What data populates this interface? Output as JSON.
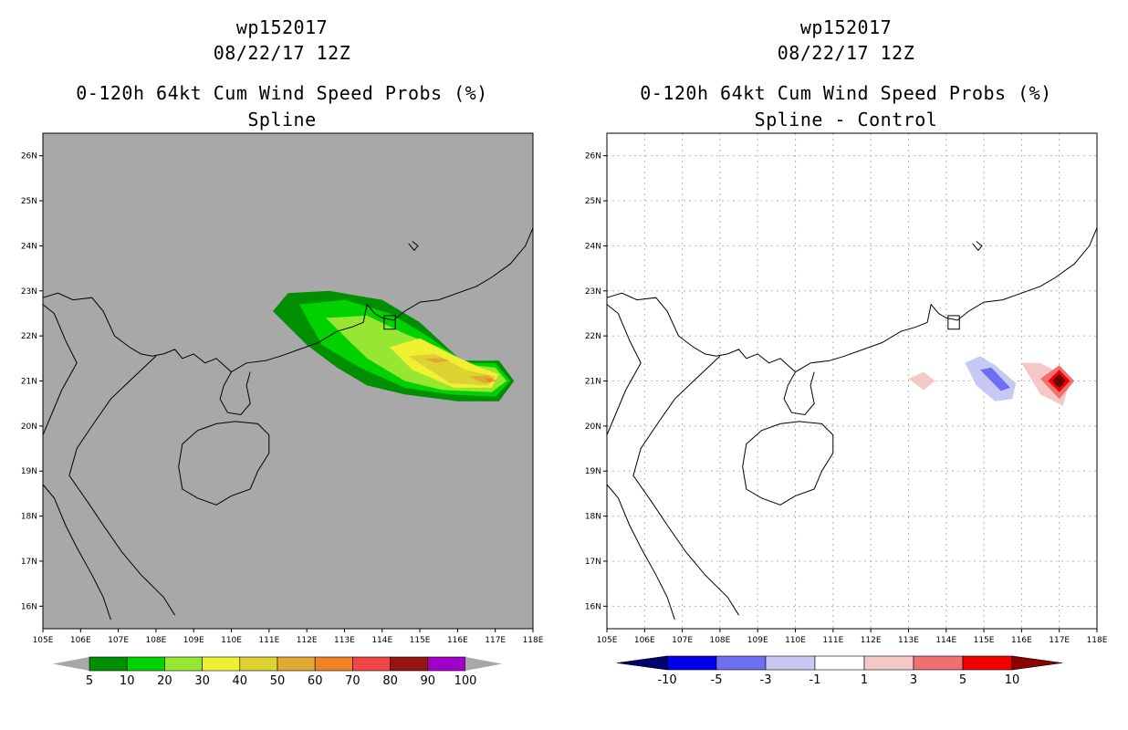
{
  "chart_data": [
    {
      "type": "heatmap",
      "storm_id": "wp152017",
      "datetime": "08/22/17 12Z",
      "title": "0-120h 64kt Cum Wind Speed Probs (%)",
      "subtitle": "Spline",
      "xlim": [
        105,
        118
      ],
      "ylim": [
        15.5,
        26.5
      ],
      "x_ticks": [
        "105E",
        "106E",
        "107E",
        "108E",
        "109E",
        "110E",
        "111E",
        "112E",
        "113E",
        "114E",
        "115E",
        "116E",
        "117E",
        "118E"
      ],
      "y_ticks": [
        "16N",
        "17N",
        "18N",
        "19N",
        "20N",
        "21N",
        "22N",
        "23N",
        "24N",
        "25N",
        "26N"
      ],
      "background": "#a8a8a8",
      "colorbar": {
        "levels": [
          "5",
          "10",
          "20",
          "30",
          "40",
          "50",
          "60",
          "70",
          "80",
          "90",
          "100"
        ],
        "colors": [
          "#008f00",
          "#00d200",
          "#96e632",
          "#f0f032",
          "#dcd232",
          "#e1aa32",
          "#f08228",
          "#f04646",
          "#961414",
          "#a000c8"
        ],
        "extend_color": "#a8a8a8"
      },
      "contours": [
        {
          "level": "5-10",
          "color": "#008f00",
          "polygon": [
            [
              111.1,
              22.55
            ],
            [
              111.5,
              22.95
            ],
            [
              112.6,
              23.0
            ],
            [
              114.0,
              22.8
            ],
            [
              115.0,
              22.3
            ],
            [
              116.1,
              21.45
            ],
            [
              117.1,
              21.45
            ],
            [
              117.5,
              21.0
            ],
            [
              117.1,
              20.55
            ],
            [
              116.0,
              20.55
            ],
            [
              114.6,
              20.7
            ],
            [
              113.6,
              20.9
            ],
            [
              112.8,
              21.3
            ],
            [
              112.0,
              21.8
            ],
            [
              111.1,
              22.55
            ]
          ]
        },
        {
          "level": "10-20",
          "color": "#00d200",
          "polygon": [
            [
              111.8,
              22.7
            ],
            [
              113.0,
              22.8
            ],
            [
              114.2,
              22.5
            ],
            [
              115.2,
              22.0
            ],
            [
              116.2,
              21.4
            ],
            [
              117.0,
              21.4
            ],
            [
              117.4,
              21.0
            ],
            [
              117.0,
              20.65
            ],
            [
              115.8,
              20.7
            ],
            [
              114.6,
              20.85
            ],
            [
              113.4,
              21.3
            ],
            [
              112.4,
              21.8
            ],
            [
              111.8,
              22.7
            ]
          ]
        },
        {
          "level": "20-30",
          "color": "#96e632",
          "polygon": [
            [
              112.5,
              22.4
            ],
            [
              113.6,
              22.45
            ],
            [
              114.6,
              22.05
            ],
            [
              115.5,
              21.75
            ],
            [
              116.4,
              21.35
            ],
            [
              117.0,
              21.3
            ],
            [
              117.3,
              21.0
            ],
            [
              116.9,
              20.75
            ],
            [
              115.6,
              20.8
            ],
            [
              114.6,
              21.0
            ],
            [
              113.6,
              21.5
            ],
            [
              112.5,
              22.4
            ]
          ]
        },
        {
          "level": "30-40",
          "color": "#f0f032",
          "polygon": [
            [
              114.2,
              21.75
            ],
            [
              115.0,
              21.95
            ],
            [
              115.8,
              21.6
            ],
            [
              116.6,
              21.3
            ],
            [
              117.1,
              21.15
            ],
            [
              116.9,
              20.85
            ],
            [
              115.9,
              20.85
            ],
            [
              114.8,
              21.25
            ],
            [
              114.2,
              21.75
            ]
          ]
        },
        {
          "level": "40-50",
          "color": "#dcd232",
          "polygon": [
            [
              114.7,
              21.55
            ],
            [
              115.4,
              21.6
            ],
            [
              116.2,
              21.25
            ],
            [
              117.0,
              21.1
            ],
            [
              116.8,
              20.9
            ],
            [
              115.8,
              20.95
            ],
            [
              114.7,
              21.55
            ]
          ]
        },
        {
          "level": "50-60",
          "color": "#e1aa32",
          "polygon": [
            [
              115.1,
              21.5
            ],
            [
              115.6,
              21.5
            ],
            [
              115.8,
              21.45
            ],
            [
              115.4,
              21.4
            ],
            [
              115.1,
              21.5
            ]
          ]
        },
        {
          "level": "50-60",
          "color": "#e1aa32",
          "polygon": [
            [
              116.3,
              21.1
            ],
            [
              116.8,
              21.12
            ],
            [
              117.05,
              21.0
            ],
            [
              116.7,
              20.95
            ],
            [
              116.3,
              21.1
            ]
          ]
        },
        {
          "level": "60-70",
          "color": "#f08228",
          "polygon": [
            [
              116.7,
              21.06
            ],
            [
              116.95,
              21.04
            ],
            [
              116.85,
              20.96
            ],
            [
              116.7,
              21.06
            ]
          ]
        }
      ]
    },
    {
      "type": "heatmap",
      "storm_id": "wp152017",
      "datetime": "08/22/17 12Z",
      "title": "0-120h 64kt Cum Wind Speed Probs (%)",
      "subtitle": "Spline - Control",
      "xlim": [
        105,
        118
      ],
      "ylim": [
        15.5,
        26.5
      ],
      "x_ticks": [
        "105E",
        "106E",
        "107E",
        "108E",
        "109E",
        "110E",
        "111E",
        "112E",
        "113E",
        "114E",
        "115E",
        "116E",
        "117E",
        "118E"
      ],
      "y_ticks": [
        "16N",
        "17N",
        "18N",
        "19N",
        "20N",
        "21N",
        "22N",
        "23N",
        "24N",
        "25N",
        "26N"
      ],
      "background": "#ffffff",
      "grid": true,
      "colorbar": {
        "levels": [
          "-10",
          "-5",
          "-3",
          "-1",
          "1",
          "3",
          "5",
          "10"
        ],
        "colors": [
          "#0000e6",
          "#6e6ef0",
          "#c8c8f5",
          "#ffffff",
          "#f5c8c8",
          "#f07070",
          "#f00000"
        ],
        "under_color": "#00006e",
        "over_color": "#8c0000"
      },
      "contours": [
        {
          "level": "-3 to -1",
          "color": "#c8c8f5",
          "polygon": [
            [
              114.5,
              21.4
            ],
            [
              114.9,
              21.55
            ],
            [
              115.3,
              21.35
            ],
            [
              115.85,
              20.95
            ],
            [
              115.75,
              20.6
            ],
            [
              115.3,
              20.55
            ],
            [
              114.8,
              20.9
            ],
            [
              114.5,
              21.4
            ]
          ]
        },
        {
          "level": "-5 to -3",
          "color": "#6e6ef0",
          "polygon": [
            [
              114.9,
              21.25
            ],
            [
              115.2,
              21.3
            ],
            [
              115.7,
              20.85
            ],
            [
              115.45,
              20.78
            ],
            [
              114.9,
              21.25
            ]
          ]
        },
        {
          "level": "1 to 3",
          "color": "#f5c8c8",
          "polygon": [
            [
              113.0,
              21.05
            ],
            [
              113.4,
              21.2
            ],
            [
              113.7,
              21.0
            ],
            [
              113.4,
              20.8
            ],
            [
              113.0,
              21.05
            ]
          ]
        },
        {
          "level": "1 to 3",
          "color": "#f5c8c8",
          "polygon": [
            [
              116.0,
              21.4
            ],
            [
              116.5,
              21.4
            ],
            [
              117.3,
              21.05
            ],
            [
              117.1,
              20.45
            ],
            [
              116.5,
              20.7
            ],
            [
              116.0,
              21.4
            ]
          ]
        },
        {
          "level": "3 to 5",
          "color": "#f07070",
          "polygon": [
            [
              116.5,
              21.05
            ],
            [
              117.0,
              21.35
            ],
            [
              117.4,
              21.0
            ],
            [
              117.0,
              20.6
            ],
            [
              116.5,
              21.05
            ]
          ]
        },
        {
          "level": "5 to 10",
          "color": "#f00000",
          "polygon": [
            [
              116.7,
              21.0
            ],
            [
              117.0,
              21.25
            ],
            [
              117.28,
              21.0
            ],
            [
              117.0,
              20.75
            ],
            [
              116.7,
              21.0
            ]
          ]
        },
        {
          "level": ">10",
          "color": "#8c0000",
          "polygon": [
            [
              116.85,
              21.0
            ],
            [
              117.0,
              21.14
            ],
            [
              117.14,
              21.0
            ],
            [
              117.0,
              20.86
            ],
            [
              116.85,
              21.0
            ]
          ]
        }
      ]
    }
  ],
  "map": {
    "coastline": [
      [
        105.0,
        22.85
      ],
      [
        105.4,
        22.95
      ],
      [
        105.8,
        22.8
      ],
      [
        106.3,
        22.85
      ],
      [
        106.6,
        22.55
      ],
      [
        106.9,
        22.0
      ],
      [
        107.3,
        21.75
      ],
      [
        107.6,
        21.6
      ],
      [
        107.9,
        21.55
      ],
      [
        108.2,
        21.6
      ],
      [
        108.5,
        21.7
      ],
      [
        108.7,
        21.5
      ],
      [
        109.0,
        21.6
      ],
      [
        109.3,
        21.4
      ],
      [
        109.6,
        21.5
      ],
      [
        109.8,
        21.35
      ],
      [
        110.0,
        21.2
      ],
      [
        110.4,
        21.4
      ],
      [
        110.9,
        21.45
      ],
      [
        111.3,
        21.55
      ],
      [
        111.8,
        21.7
      ],
      [
        112.3,
        21.85
      ],
      [
        112.8,
        22.1
      ],
      [
        113.2,
        22.2
      ],
      [
        113.5,
        22.3
      ],
      [
        113.6,
        22.7
      ],
      [
        113.8,
        22.5
      ],
      [
        114.0,
        22.4
      ],
      [
        114.3,
        22.35
      ],
      [
        114.6,
        22.55
      ],
      [
        115.0,
        22.75
      ],
      [
        115.5,
        22.8
      ],
      [
        116.0,
        22.95
      ],
      [
        116.5,
        23.1
      ],
      [
        116.9,
        23.3
      ],
      [
        117.4,
        23.6
      ],
      [
        117.8,
        24.0
      ],
      [
        118.0,
        24.4
      ]
    ],
    "leizhou": [
      [
        110.0,
        21.2
      ],
      [
        109.8,
        20.9
      ],
      [
        109.7,
        20.6
      ],
      [
        109.9,
        20.3
      ],
      [
        110.25,
        20.25
      ],
      [
        110.5,
        20.5
      ],
      [
        110.4,
        20.9
      ],
      [
        110.5,
        21.2
      ]
    ],
    "hainan": [
      [
        108.6,
        19.1
      ],
      [
        108.7,
        19.6
      ],
      [
        109.1,
        19.9
      ],
      [
        109.6,
        20.05
      ],
      [
        110.1,
        20.1
      ],
      [
        110.7,
        20.05
      ],
      [
        111.0,
        19.8
      ],
      [
        111.0,
        19.4
      ],
      [
        110.7,
        19.0
      ],
      [
        110.5,
        18.6
      ],
      [
        110.0,
        18.45
      ],
      [
        109.6,
        18.25
      ],
      [
        109.1,
        18.4
      ],
      [
        108.7,
        18.6
      ],
      [
        108.6,
        19.1
      ]
    ],
    "vietnam": [
      [
        108.0,
        21.55
      ],
      [
        107.3,
        21.0
      ],
      [
        106.8,
        20.6
      ],
      [
        106.3,
        20.0
      ],
      [
        105.9,
        19.5
      ],
      [
        105.7,
        18.9
      ],
      [
        106.2,
        18.3
      ],
      [
        106.6,
        17.8
      ],
      [
        107.1,
        17.2
      ],
      [
        107.6,
        16.7
      ],
      [
        108.2,
        16.2
      ],
      [
        108.5,
        15.8
      ]
    ],
    "laos_border": [
      [
        105.0,
        22.7
      ],
      [
        105.3,
        22.5
      ],
      [
        105.6,
        21.9
      ],
      [
        105.9,
        21.4
      ],
      [
        105.5,
        20.8
      ],
      [
        105.2,
        20.2
      ],
      [
        105.0,
        19.8
      ]
    ],
    "border2": [
      [
        105.0,
        18.7
      ],
      [
        105.3,
        18.4
      ],
      [
        105.6,
        17.8
      ],
      [
        105.9,
        17.3
      ],
      [
        106.3,
        16.7
      ],
      [
        106.6,
        16.2
      ],
      [
        106.8,
        15.7
      ]
    ]
  }
}
